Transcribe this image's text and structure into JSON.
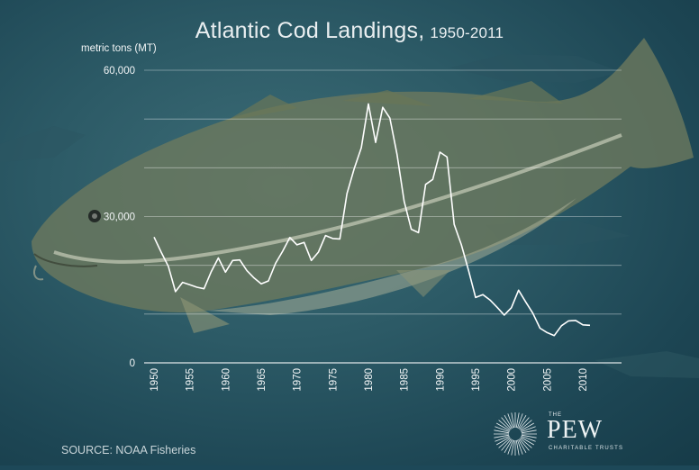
{
  "chart_data": {
    "type": "line",
    "title": "Atlantic Cod Landings,",
    "title_years": "1950-2011",
    "ylabel": "metric tons (MT)",
    "ylim": [
      0,
      60000
    ],
    "yticks": [
      0,
      10000,
      20000,
      30000,
      40000,
      50000,
      60000
    ],
    "ytick_labels": [
      "0",
      "",
      "",
      "30,000",
      "",
      "",
      "60,000"
    ],
    "xlim": [
      1950,
      2011
    ],
    "xticks": [
      1950,
      1955,
      1960,
      1965,
      1970,
      1975,
      1980,
      1985,
      1990,
      1995,
      2000,
      2005,
      2010
    ],
    "grid": true,
    "series": [
      {
        "x": [
          1950,
          1951,
          1952,
          1953,
          1954,
          1955,
          1956,
          1957,
          1958,
          1959,
          1960,
          1961,
          1962,
          1963,
          1964,
          1965,
          1966,
          1967,
          1968,
          1969,
          1970,
          1971,
          1972,
          1973,
          1974,
          1975,
          1976,
          1977,
          1978,
          1979,
          1980,
          1981,
          1982,
          1983,
          1984,
          1985,
          1986,
          1987,
          1988,
          1989,
          1990,
          1991,
          1992,
          1993,
          1994,
          1995,
          1996,
          1997,
          1998,
          1999,
          2000,
          2001,
          2002,
          2003,
          2004,
          2005,
          2006,
          2007,
          2008,
          2009,
          2010,
          2011
        ],
        "values": [
          25800,
          22700,
          19800,
          14600,
          16500,
          16000,
          15500,
          15200,
          18700,
          21500,
          18600,
          21000,
          21100,
          18900,
          17400,
          16200,
          16800,
          20400,
          22900,
          25700,
          24200,
          24700,
          21000,
          22700,
          26100,
          25500,
          25400,
          34700,
          39800,
          44100,
          53100,
          45200,
          52400,
          50200,
          42700,
          33100,
          27400,
          26700,
          36600,
          37600,
          43200,
          42200,
          28400,
          24200,
          19000,
          13400,
          14000,
          12900,
          11400,
          9800,
          11300,
          14900,
          12500,
          10200,
          7100,
          6200,
          5600,
          7600,
          8600,
          8700,
          7800,
          7700
        ],
        "color": "#ffffff"
      }
    ]
  },
  "footer": {
    "source": "SOURCE: NOAA Fisheries"
  },
  "logo": {
    "the": "THE",
    "name": "PEW",
    "subtitle": "CHARITABLE TRUSTS"
  }
}
